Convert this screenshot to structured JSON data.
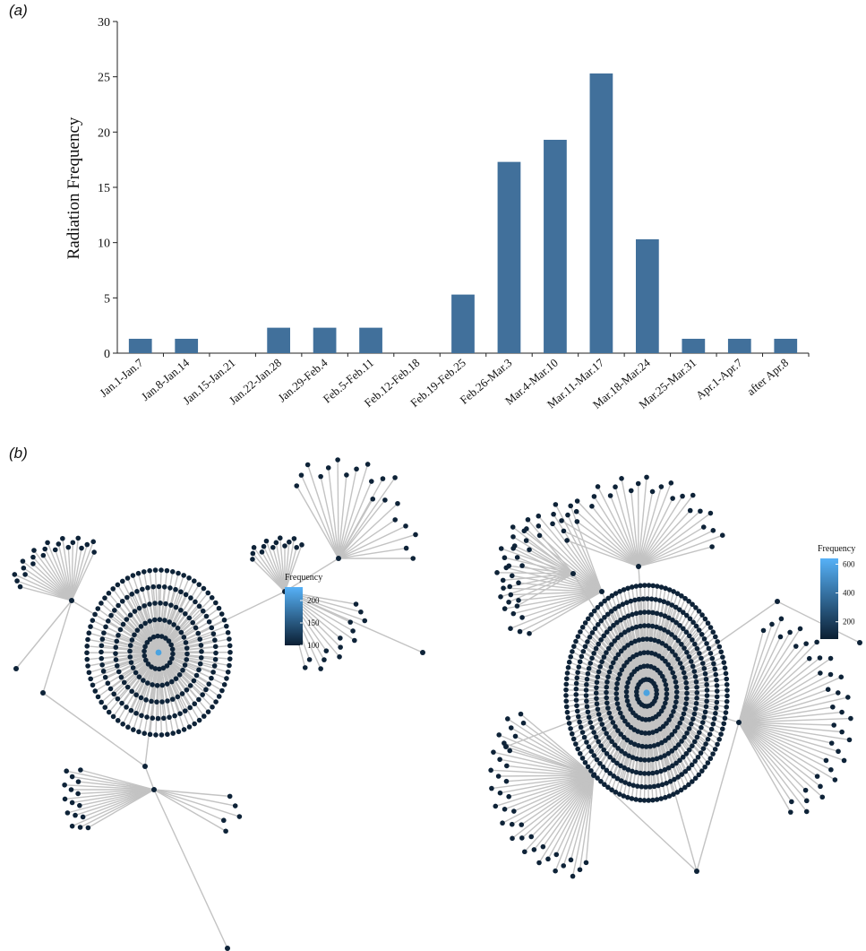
{
  "panel_a": {
    "label": "(a)"
  },
  "panel_b": {
    "label": "(b)",
    "legend_left": {
      "title": "Frequency",
      "ticks": [
        100,
        150,
        200
      ],
      "min": 100,
      "max": 230
    },
    "legend_right": {
      "title": "Frequency",
      "ticks": [
        200,
        400,
        600
      ],
      "min": 80,
      "max": 640
    },
    "colors": {
      "node": "#0e2338",
      "edge": "#c3c3c3",
      "hub": "#4ba3e0",
      "legend_low": "#0b1f33",
      "legend_high": "#56b1f7"
    }
  },
  "chart_data": {
    "type": "bar",
    "categories": [
      "Jan.1-Jan.7",
      "Jan.8-Jan.14",
      "Jan.15-Jan.21",
      "Jan.22-Jan.28",
      "Jan.29-Feb.4",
      "Feb.5-Feb.11",
      "Feb.12-Feb.18",
      "Feb.19-Feb.25",
      "Feb.26-Mar.3",
      "Mar.4-Mar.10",
      "Mar.11-Mar.17",
      "Mar.18-Mar.24",
      "Mar.25-Mar.31",
      "Apr.1-Apr.7",
      "after Apr.8"
    ],
    "values": [
      1.3,
      1.3,
      0,
      2.3,
      2.3,
      2.3,
      0,
      5.3,
      17.3,
      19.3,
      25.3,
      10.3,
      1.3,
      1.3,
      1.3
    ],
    "title": "",
    "xlabel": "",
    "ylabel": "Radiation Frequency",
    "ylim": [
      0,
      30
    ],
    "yticks": [
      0,
      5,
      10,
      15,
      20,
      25,
      30
    ],
    "bar_color": "#41709b",
    "grid": false
  }
}
